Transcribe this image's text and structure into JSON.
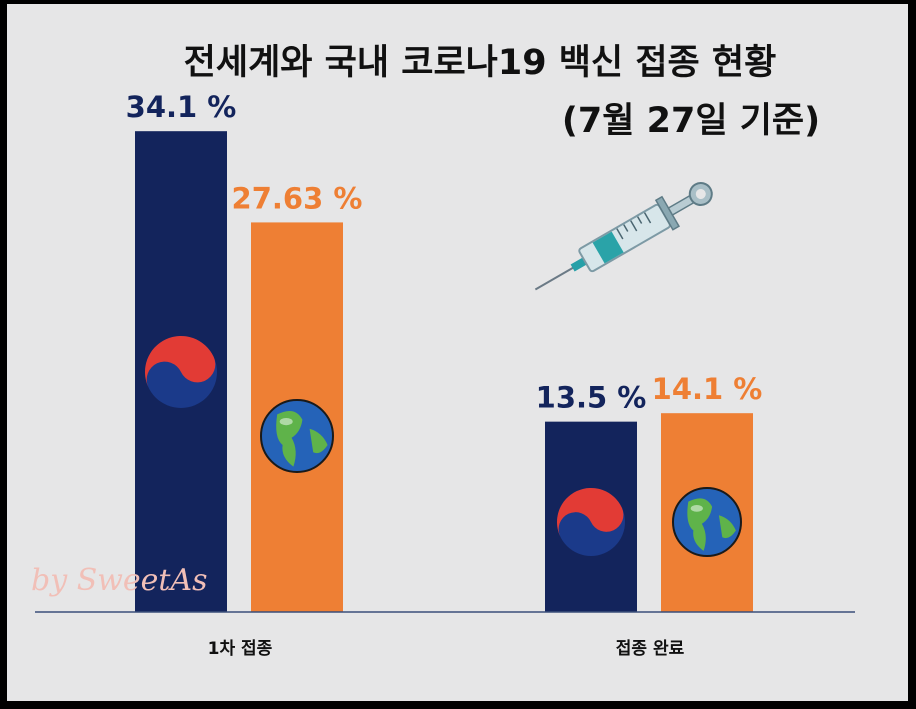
{
  "chart_data": {
    "type": "bar",
    "title": "전세계와 국내 코로나19 백신 접종 현황",
    "subtitle": "(7월 27일 기준)",
    "categories": [
      "1차 접종",
      "접종 완료"
    ],
    "series": [
      {
        "values": [
          34.1,
          13.5
        ],
        "labels": [
          "34.1 %",
          "13.5 %"
        ],
        "color": "#13245c",
        "icon": "korea-taegeuk-icon"
      },
      {
        "values": [
          27.63,
          14.1
        ],
        "labels": [
          "27.63 %",
          "14.1 %"
        ],
        "color": "#ee7f34",
        "icon": "earth-globe-icon"
      }
    ],
    "ylim": [
      0,
      40
    ],
    "grid": false,
    "legend": "none"
  },
  "decorations": {
    "syringe_icon": "syringe-icon",
    "watermark": "by SweetAs"
  },
  "colors": {
    "background": "#e6e6e7",
    "frame": "#000000",
    "korea_bar": "#13245c",
    "world_bar": "#ee7f34",
    "axis": "#3a4f7a"
  }
}
